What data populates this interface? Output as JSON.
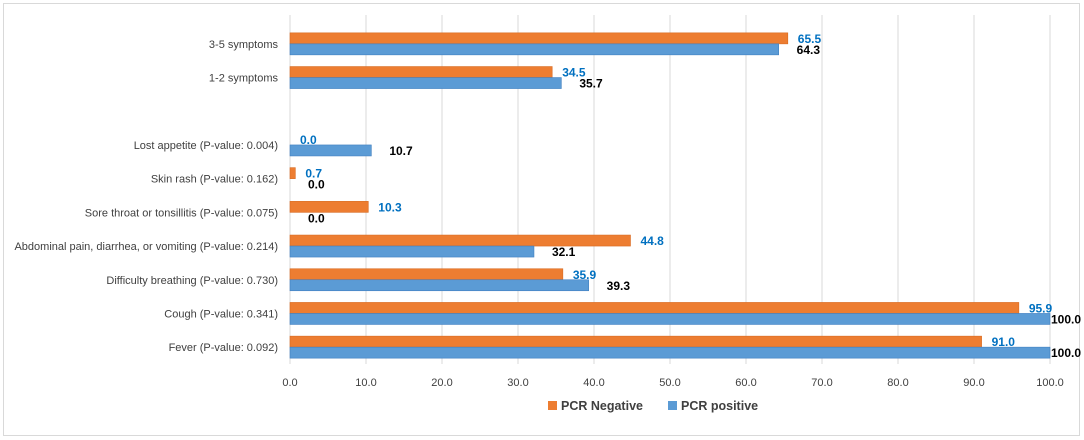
{
  "chart_data": {
    "type": "bar",
    "orientation": "horizontal",
    "categories": [
      "3-5 symptoms",
      "1-2 symptoms",
      "",
      "Lost appetite (P-value: 0.004)",
      "Skin rash (P-value: 0.162)",
      "Sore throat or tonsillitis (P-value: 0.075)",
      "Abdominal pain, diarrhea, or vomiting (P-value: 0.214)",
      "Difficulty breathing (P-value: 0.730)",
      "Cough (P-value: 0.341)",
      "Fever (P-value: 0.092)"
    ],
    "series": [
      {
        "name": "PCR Negative",
        "color": "#ed7d31",
        "label_color": "#0070c0",
        "values": [
          65.5,
          34.5,
          null,
          0.0,
          0.7,
          10.3,
          44.8,
          35.9,
          95.9,
          91.0
        ],
        "labels": [
          "65.5",
          "34.5",
          "",
          "0.0",
          "0.7",
          "10.3",
          "44.8",
          "35.9",
          "95.9",
          "91.0"
        ]
      },
      {
        "name": "PCR positive",
        "color": "#5b9bd5",
        "label_color": "#000000",
        "values": [
          64.3,
          35.7,
          null,
          10.7,
          0.0,
          0.0,
          32.1,
          39.3,
          100.0,
          100.0
        ],
        "labels": [
          "64.3",
          "35.7",
          "",
          "10.7",
          "0.0",
          "0.0",
          "32.1",
          "39.3",
          "100.0",
          "100.0"
        ]
      }
    ],
    "xlim": [
      0,
      100
    ],
    "xticks": [
      "0.0",
      "10.0",
      "20.0",
      "30.0",
      "40.0",
      "50.0",
      "60.0",
      "70.0",
      "80.0",
      "90.0",
      "100.0"
    ],
    "grid": "vertical",
    "legend": "bottom",
    "title": "",
    "xlabel": "",
    "ylabel": ""
  }
}
